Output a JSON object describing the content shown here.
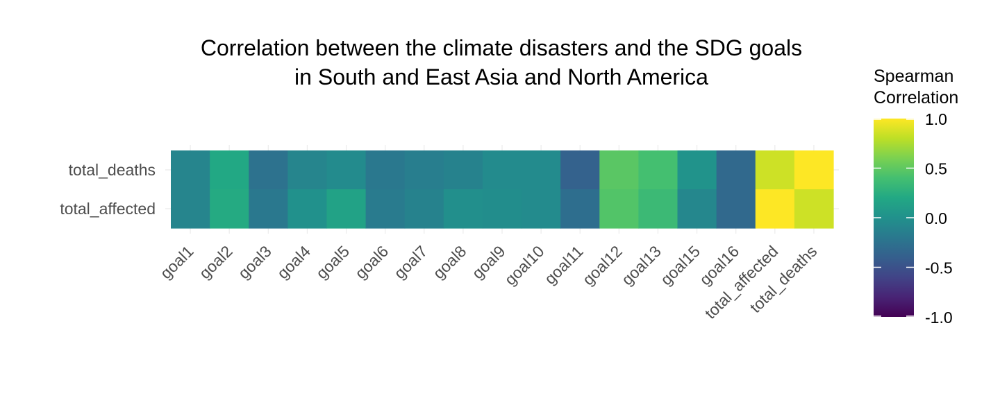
{
  "chart_data": {
    "type": "heatmap",
    "title": "Correlation between the climate disasters and the SDG goals\nin South and East Asia and North America",
    "xlabel": "",
    "ylabel": "",
    "x_categories": [
      "goal1",
      "goal2",
      "goal3",
      "goal4",
      "goal5",
      "goal6",
      "goal7",
      "goal8",
      "goal9",
      "goal10",
      "goal11",
      "goal12",
      "goal13",
      "goal15",
      "goal16",
      "total_affected",
      "total_deaths"
    ],
    "y_categories": [
      "total_deaths",
      "total_affected"
    ],
    "rows": [
      {
        "name": "total_deaths",
        "values": [
          -0.1,
          0.2,
          -0.25,
          -0.1,
          -0.05,
          -0.2,
          -0.15,
          -0.12,
          -0.05,
          -0.05,
          -0.38,
          0.48,
          0.4,
          0.02,
          -0.32,
          0.85,
          1.0
        ]
      },
      {
        "name": "total_affected",
        "values": [
          -0.1,
          0.22,
          -0.2,
          0.0,
          0.15,
          -0.18,
          -0.12,
          -0.02,
          -0.03,
          -0.05,
          -0.28,
          0.45,
          0.35,
          -0.08,
          -0.32,
          1.0,
          0.85
        ]
      }
    ],
    "colorscale": {
      "name": "viridis",
      "range": [
        -1.0,
        1.0
      ],
      "legend_title": "Spearman\nCorrelation",
      "ticks": [
        1.0,
        0.5,
        0.0,
        -0.5,
        -1.0
      ],
      "tick_labels": [
        "1.0",
        "0.5",
        "0.0",
        "-0.5",
        "-1.0"
      ],
      "legend_position": "right"
    },
    "grid": true
  }
}
